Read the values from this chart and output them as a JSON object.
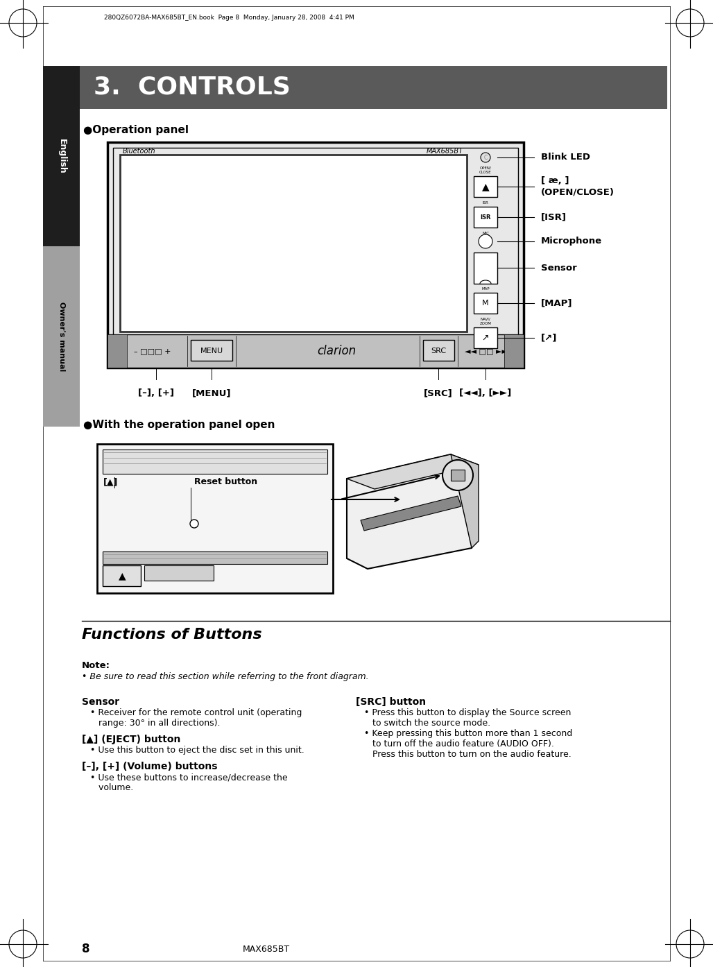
{
  "page_header": "280QZ6072BA-MAX685BT_EN.book  Page 8  Monday, January 28, 2008  4:41 PM",
  "section_title": "3.  CONTROLS",
  "sidebar_english": "English",
  "sidebar_manual": "Owner's manual",
  "op_panel_label": "●Operation panel",
  "op_panel_open_label": "●With the operation panel open",
  "functions_title": "Functions of Buttons",
  "note_label": "Note:",
  "note_bullet": "Be sure to read this section while referring to the front diagram.",
  "bluetooth_label": "Bluetooth",
  "max685bt_label": "MAX685BT",
  "clarion_label": "clarion",
  "blink_led": "Blink LED",
  "open_close_bracket": "[ æ, ]",
  "open_close_label": "(OPEN/CLOSE)",
  "isr_label": "[ISR]",
  "microphone_label": "Microphone",
  "sensor_label": "Sensor",
  "map_label": "[MAP]",
  "phone_label": "[↗]",
  "minus_plus_label": "[–], [+]",
  "menu_label": "[MENU]",
  "src_label": "[SRC]",
  "skip_label": "[◄◄], [►►]",
  "reset_button_label": "Reset button",
  "col1_head1": "Sensor",
  "col1_b1_1": "Receiver for the remote control unit (operating",
  "col1_b1_2": "range: 30° in all directions).",
  "col1_head2": "[▲] (EJECT) button",
  "col1_b2": "Use this button to eject the disc set in this unit.",
  "col1_head3": "[–], [+] (Volume) buttons",
  "col1_b3_1": "Use these buttons to increase/decrease the",
  "col1_b3_2": "volume.",
  "col2_head1": "[SRC] button",
  "col2_b1_1": "Press this button to display the Source screen",
  "col2_b1_2": "to switch the source mode.",
  "col2_b2_1": "Keep pressing this button more than 1 second",
  "col2_b2_2": "to turn off the audio feature (AUDIO OFF).",
  "col2_b2_3": "Press this button to turn on the audio feature.",
  "page_number": "8",
  "page_model": "MAX685BT",
  "bg_color": "#ffffff",
  "header_bg": "#5a5a5a",
  "sidebar_dark": "#1e1e1e",
  "sidebar_gray": "#a0a0a0",
  "device_fill": "#f0f0f0",
  "screen_fill": "#ffffff",
  "btn_fill": "#ffffff",
  "bottom_strip": "#c0c0c0"
}
